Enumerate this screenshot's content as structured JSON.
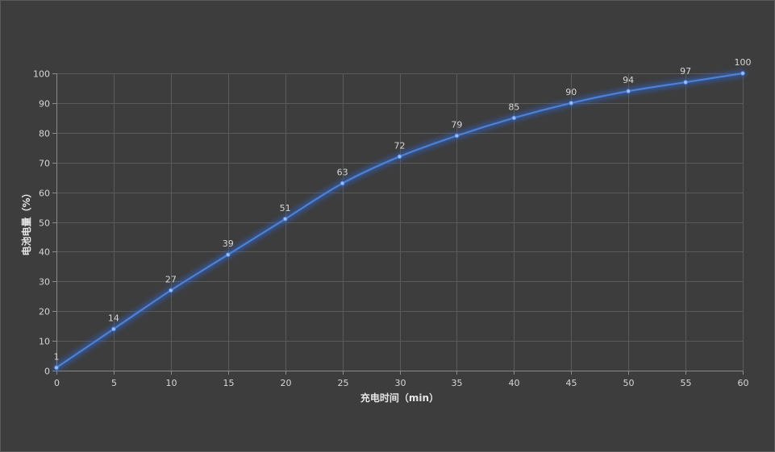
{
  "colors": {
    "background": "#3d3d3d",
    "series": "#4f81d2",
    "glow": "#2f62c9"
  },
  "chart_data": {
    "type": "line",
    "smooth": true,
    "grid": true,
    "xlabel": "充电时间（min）",
    "ylabel": "电池电量（%）",
    "xlim": [
      0,
      60
    ],
    "ylim": [
      0,
      100
    ],
    "xticks": [
      0,
      5,
      10,
      15,
      20,
      25,
      30,
      35,
      40,
      45,
      50,
      55,
      60
    ],
    "yticks": [
      0,
      10,
      20,
      30,
      40,
      50,
      60,
      70,
      80,
      90,
      100
    ],
    "x": [
      0,
      5,
      10,
      15,
      20,
      25,
      30,
      35,
      40,
      45,
      50,
      55,
      60
    ],
    "series": [
      {
        "values": [
          1,
          14,
          27,
          39,
          51,
          63,
          72,
          79,
          85,
          90,
          94,
          97,
          100
        ]
      }
    ]
  }
}
